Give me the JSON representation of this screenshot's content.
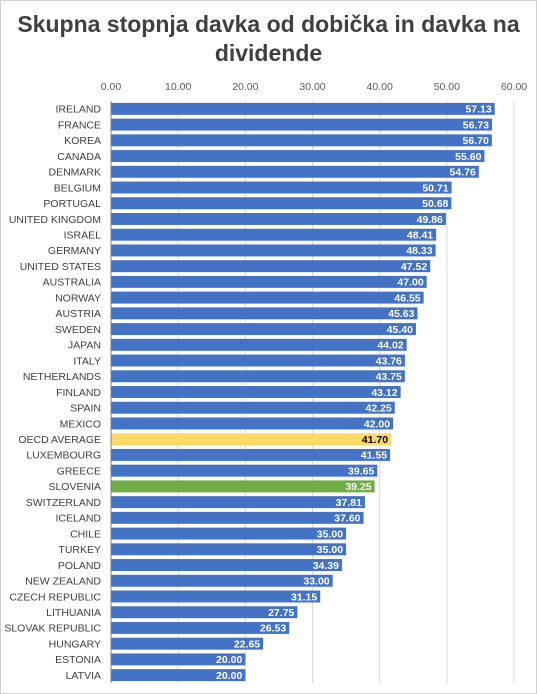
{
  "chart_data": {
    "type": "bar",
    "orientation": "horizontal",
    "title": "Skupna stopnja davka od dobička in davka na dividende",
    "xlim": [
      0,
      60
    ],
    "x_ticks": [
      "0.00",
      "10.00",
      "20.00",
      "30.00",
      "40.00",
      "50.00",
      "60.00"
    ],
    "grid": true,
    "colors": {
      "default": "#4472C4",
      "oecd": "#FFD966",
      "slovenia": "#70AD47"
    },
    "categories": [
      "IRELAND",
      "FRANCE",
      "KOREA",
      "CANADA",
      "DENMARK",
      "BELGIUM",
      "PORTUGAL",
      "UNITED KINGDOM",
      "ISRAEL",
      "GERMANY",
      "UNITED STATES",
      "AUSTRALIA",
      "NORWAY",
      "AUSTRIA",
      "SWEDEN",
      "JAPAN",
      "ITALY",
      "NETHERLANDS",
      "FINLAND",
      "SPAIN",
      "MEXICO",
      "OECD AVERAGE",
      "LUXEMBOURG",
      "GREECE",
      "SLOVENIA",
      "SWITZERLAND",
      "ICELAND",
      "CHILE",
      "TURKEY",
      "POLAND",
      "NEW ZEALAND",
      "CZECH REPUBLIC",
      "LITHUANIA",
      "SLOVAK REPUBLIC",
      "HUNGARY",
      "ESTONIA",
      "LATVIA"
    ],
    "values": [
      57.13,
      56.73,
      56.7,
      55.6,
      54.76,
      50.71,
      50.68,
      49.86,
      48.41,
      48.33,
      47.52,
      47.0,
      46.55,
      45.63,
      45.4,
      44.02,
      43.76,
      43.75,
      43.12,
      42.25,
      42.0,
      41.7,
      41.55,
      39.65,
      39.25,
      37.81,
      37.6,
      35.0,
      35.0,
      34.39,
      33.0,
      31.15,
      27.75,
      26.53,
      22.65,
      20.0,
      20.0
    ],
    "value_labels": [
      "57.13",
      "56.73",
      "56.70",
      "55.60",
      "54.76",
      "50.71",
      "50.68",
      "49.86",
      "48.41",
      "48.33",
      "47.52",
      "47.00",
      "46.55",
      "45.63",
      "45.40",
      "44.02",
      "43.76",
      "43.75",
      "43.12",
      "42.25",
      "42.00",
      "41.70",
      "41.55",
      "39.65",
      "39.25",
      "37.81",
      "37.60",
      "35.00",
      "35.00",
      "34.39",
      "33.00",
      "31.15",
      "27.75",
      "26.53",
      "22.65",
      "20.00",
      "20.00"
    ],
    "highlights": {
      "OECD AVERAGE": "oecd",
      "SLOVENIA": "slovenia"
    }
  }
}
